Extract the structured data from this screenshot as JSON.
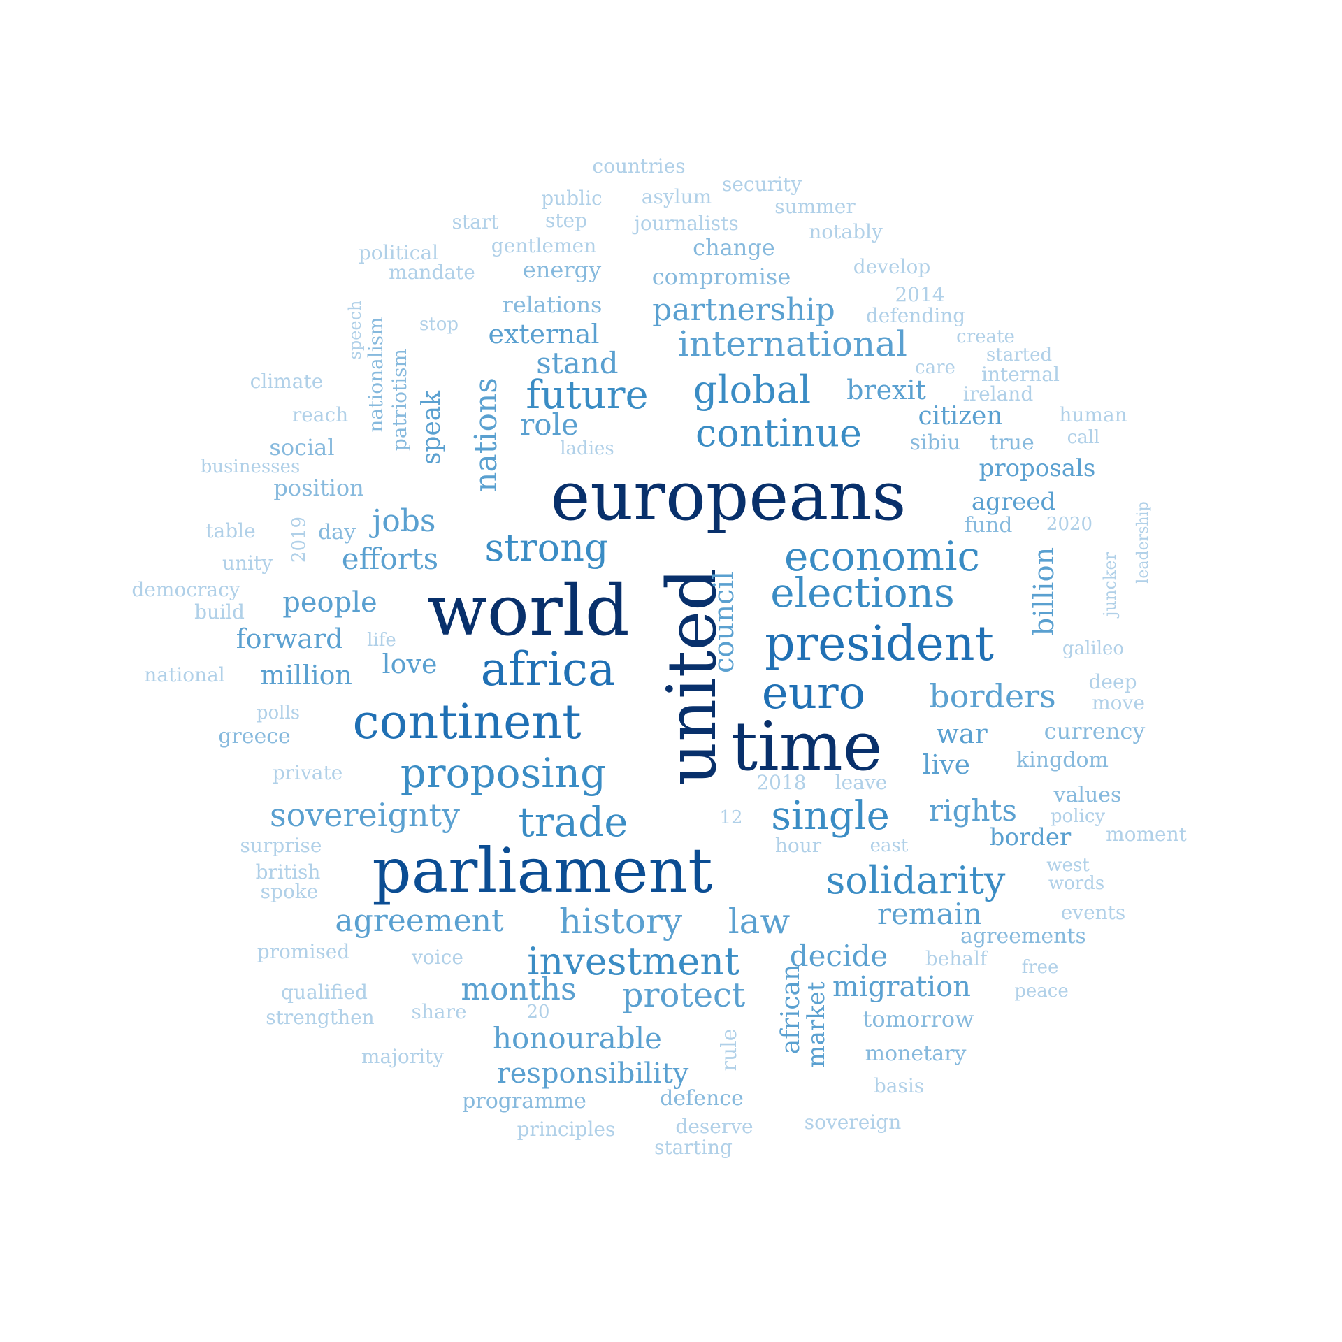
{
  "word_cloud": {
    "palette": {
      "c1": "#08306b",
      "c2": "#0b4d93",
      "c3": "#2070b4",
      "c4": "#3a8cc4",
      "c5": "#5aa0d0",
      "c6": "#86b9dd",
      "c7": "#b0d0e8"
    },
    "words": [
      {
        "text": "europeans",
        "color": "#08306b"
      },
      {
        "text": "world",
        "color": "#08306b"
      },
      {
        "text": "united",
        "color": "#08306b"
      },
      {
        "text": "time",
        "color": "#08306b"
      },
      {
        "text": "parliament",
        "color": "#0b4d93"
      },
      {
        "text": "continent",
        "color": "#2070b4"
      },
      {
        "text": "africa",
        "color": "#2070b4"
      },
      {
        "text": "president",
        "color": "#2070b4"
      },
      {
        "text": "euro",
        "color": "#2070b4"
      },
      {
        "text": "economic",
        "color": "#3a8cc4"
      },
      {
        "text": "elections",
        "color": "#3a8cc4"
      },
      {
        "text": "strong",
        "color": "#3a8cc4"
      },
      {
        "text": "single",
        "color": "#3a8cc4"
      },
      {
        "text": "proposing",
        "color": "#3a8cc4"
      },
      {
        "text": "trade",
        "color": "#3a8cc4"
      },
      {
        "text": "investment",
        "color": "#3a8cc4"
      },
      {
        "text": "solidarity",
        "color": "#3a8cc4"
      },
      {
        "text": "future",
        "color": "#3a8cc4"
      },
      {
        "text": "global",
        "color": "#3a8cc4"
      },
      {
        "text": "continue",
        "color": "#3a8cc4"
      },
      {
        "text": "international",
        "color": "#5aa0d0"
      },
      {
        "text": "partnership",
        "color": "#5aa0d0"
      },
      {
        "text": "history",
        "color": "#5aa0d0"
      },
      {
        "text": "law",
        "color": "#5aa0d0"
      },
      {
        "text": "sovereignty",
        "color": "#5aa0d0"
      },
      {
        "text": "nations",
        "color": "#5aa0d0"
      },
      {
        "text": "borders",
        "color": "#5aa0d0"
      },
      {
        "text": "protect",
        "color": "#5aa0d0"
      },
      {
        "text": "months",
        "color": "#5aa0d0"
      },
      {
        "text": "agreement",
        "color": "#5aa0d0"
      },
      {
        "text": "honourable",
        "color": "#5aa0d0"
      },
      {
        "text": "responsibility",
        "color": "#5aa0d0"
      },
      {
        "text": "remain",
        "color": "#5aa0d0"
      },
      {
        "text": "decide",
        "color": "#5aa0d0"
      },
      {
        "text": "migration",
        "color": "#5aa0d0"
      },
      {
        "text": "rights",
        "color": "#5aa0d0"
      },
      {
        "text": "council",
        "color": "#5aa0d0"
      },
      {
        "text": "billion",
        "color": "#5aa0d0"
      },
      {
        "text": "jobs",
        "color": "#5aa0d0"
      },
      {
        "text": "efforts",
        "color": "#5aa0d0"
      },
      {
        "text": "people",
        "color": "#5aa0d0"
      },
      {
        "text": "forward",
        "color": "#5aa0d0"
      },
      {
        "text": "million",
        "color": "#5aa0d0"
      },
      {
        "text": "love",
        "color": "#5aa0d0"
      },
      {
        "text": "role",
        "color": "#5aa0d0"
      },
      {
        "text": "stand",
        "color": "#5aa0d0"
      },
      {
        "text": "external",
        "color": "#5aa0d0"
      },
      {
        "text": "brexit",
        "color": "#5aa0d0"
      },
      {
        "text": "citizen",
        "color": "#5aa0d0"
      },
      {
        "text": "proposals",
        "color": "#5aa0d0"
      },
      {
        "text": "agreed",
        "color": "#5aa0d0"
      },
      {
        "text": "war",
        "color": "#5aa0d0"
      },
      {
        "text": "live",
        "color": "#5aa0d0"
      },
      {
        "text": "border",
        "color": "#5aa0d0"
      },
      {
        "text": "african",
        "color": "#5aa0d0"
      },
      {
        "text": "market",
        "color": "#5aa0d0"
      },
      {
        "text": "speak",
        "color": "#5aa0d0"
      },
      {
        "text": "compromise",
        "color": "#86b9dd"
      },
      {
        "text": "relations",
        "color": "#86b9dd"
      },
      {
        "text": "energy",
        "color": "#86b9dd"
      },
      {
        "text": "change",
        "color": "#86b9dd"
      },
      {
        "text": "fund",
        "color": "#86b9dd"
      },
      {
        "text": "currency",
        "color": "#86b9dd"
      },
      {
        "text": "kingdom",
        "color": "#86b9dd"
      },
      {
        "text": "values",
        "color": "#86b9dd"
      },
      {
        "text": "agreements",
        "color": "#86b9dd"
      },
      {
        "text": "tomorrow",
        "color": "#86b9dd"
      },
      {
        "text": "monetary",
        "color": "#86b9dd"
      },
      {
        "text": "programme",
        "color": "#86b9dd"
      },
      {
        "text": "defence",
        "color": "#86b9dd"
      },
      {
        "text": "position",
        "color": "#86b9dd"
      },
      {
        "text": "social",
        "color": "#86b9dd"
      },
      {
        "text": "day",
        "color": "#86b9dd"
      },
      {
        "text": "greece",
        "color": "#86b9dd"
      },
      {
        "text": "nationalism",
        "color": "#86b9dd"
      },
      {
        "text": "patriotism",
        "color": "#86b9dd"
      },
      {
        "text": "true",
        "color": "#86b9dd"
      },
      {
        "text": "sibiu",
        "color": "#86b9dd"
      },
      {
        "text": "countries",
        "color": "#b0d0e8"
      },
      {
        "text": "security",
        "color": "#b0d0e8"
      },
      {
        "text": "public",
        "color": "#b0d0e8"
      },
      {
        "text": "asylum",
        "color": "#b0d0e8"
      },
      {
        "text": "summer",
        "color": "#b0d0e8"
      },
      {
        "text": "start",
        "color": "#b0d0e8"
      },
      {
        "text": "step",
        "color": "#b0d0e8"
      },
      {
        "text": "journalists",
        "color": "#b0d0e8"
      },
      {
        "text": "notably",
        "color": "#b0d0e8"
      },
      {
        "text": "political",
        "color": "#b0d0e8"
      },
      {
        "text": "gentlemen",
        "color": "#b0d0e8"
      },
      {
        "text": "mandate",
        "color": "#b0d0e8"
      },
      {
        "text": "develop",
        "color": "#b0d0e8"
      },
      {
        "text": "2014",
        "color": "#b0d0e8"
      },
      {
        "text": "defending",
        "color": "#b0d0e8"
      },
      {
        "text": "speech",
        "color": "#b0d0e8"
      },
      {
        "text": "stop",
        "color": "#b0d0e8"
      },
      {
        "text": "create",
        "color": "#b0d0e8"
      },
      {
        "text": "started",
        "color": "#b0d0e8"
      },
      {
        "text": "care",
        "color": "#b0d0e8"
      },
      {
        "text": "internal",
        "color": "#b0d0e8"
      },
      {
        "text": "climate",
        "color": "#b0d0e8"
      },
      {
        "text": "ireland",
        "color": "#b0d0e8"
      },
      {
        "text": "reach",
        "color": "#b0d0e8"
      },
      {
        "text": "human",
        "color": "#b0d0e8"
      },
      {
        "text": "call",
        "color": "#b0d0e8"
      },
      {
        "text": "ladies",
        "color": "#b0d0e8"
      },
      {
        "text": "businesses",
        "color": "#b0d0e8"
      },
      {
        "text": "2020",
        "color": "#b0d0e8"
      },
      {
        "text": "leadership",
        "color": "#b0d0e8"
      },
      {
        "text": "table",
        "color": "#b0d0e8"
      },
      {
        "text": "2019",
        "color": "#b0d0e8"
      },
      {
        "text": "unity",
        "color": "#b0d0e8"
      },
      {
        "text": "democracy",
        "color": "#b0d0e8"
      },
      {
        "text": "build",
        "color": "#b0d0e8"
      },
      {
        "text": "juncker",
        "color": "#b0d0e8"
      },
      {
        "text": "life",
        "color": "#b0d0e8"
      },
      {
        "text": "galileo",
        "color": "#b0d0e8"
      },
      {
        "text": "national",
        "color": "#b0d0e8"
      },
      {
        "text": "deep",
        "color": "#b0d0e8"
      },
      {
        "text": "move",
        "color": "#b0d0e8"
      },
      {
        "text": "polls",
        "color": "#b0d0e8"
      },
      {
        "text": "private",
        "color": "#b0d0e8"
      },
      {
        "text": "2018",
        "color": "#b0d0e8"
      },
      {
        "text": "leave",
        "color": "#b0d0e8"
      },
      {
        "text": "12",
        "color": "#b0d0e8"
      },
      {
        "text": "policy",
        "color": "#b0d0e8"
      },
      {
        "text": "surprise",
        "color": "#b0d0e8"
      },
      {
        "text": "hour",
        "color": "#b0d0e8"
      },
      {
        "text": "east",
        "color": "#b0d0e8"
      },
      {
        "text": "moment",
        "color": "#b0d0e8"
      },
      {
        "text": "british",
        "color": "#b0d0e8"
      },
      {
        "text": "west",
        "color": "#b0d0e8"
      },
      {
        "text": "spoke",
        "color": "#b0d0e8"
      },
      {
        "text": "words",
        "color": "#b0d0e8"
      },
      {
        "text": "events",
        "color": "#b0d0e8"
      },
      {
        "text": "promised",
        "color": "#b0d0e8"
      },
      {
        "text": "voice",
        "color": "#b0d0e8"
      },
      {
        "text": "behalf",
        "color": "#b0d0e8"
      },
      {
        "text": "free",
        "color": "#b0d0e8"
      },
      {
        "text": "qualified",
        "color": "#b0d0e8"
      },
      {
        "text": "peace",
        "color": "#b0d0e8"
      },
      {
        "text": "strengthen",
        "color": "#b0d0e8"
      },
      {
        "text": "share",
        "color": "#b0d0e8"
      },
      {
        "text": "20",
        "color": "#b0d0e8"
      },
      {
        "text": "rule",
        "color": "#b0d0e8"
      },
      {
        "text": "majority",
        "color": "#b0d0e8"
      },
      {
        "text": "basis",
        "color": "#b0d0e8"
      },
      {
        "text": "principles",
        "color": "#b0d0e8"
      },
      {
        "text": "deserve",
        "color": "#b0d0e8"
      },
      {
        "text": "sovereign",
        "color": "#b0d0e8"
      },
      {
        "text": "starting",
        "color": "#b0d0e8"
      }
    ]
  }
}
